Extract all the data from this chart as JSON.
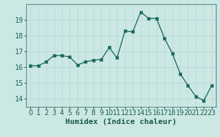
{
  "x": [
    0,
    1,
    2,
    3,
    4,
    5,
    6,
    7,
    8,
    9,
    10,
    11,
    12,
    13,
    14,
    15,
    16,
    17,
    18,
    19,
    20,
    21,
    22,
    23
  ],
  "y": [
    16.1,
    16.1,
    16.35,
    16.75,
    16.75,
    16.65,
    16.15,
    16.35,
    16.45,
    16.5,
    17.25,
    16.6,
    18.3,
    18.25,
    19.5,
    19.1,
    19.1,
    17.85,
    16.9,
    15.6,
    14.85,
    14.15,
    13.9,
    14.85
  ],
  "line_color": "#1a6b5a",
  "marker_color": "#1a6b5a",
  "bg_color": "#cce8e5",
  "grid_color": "#b8d8d5",
  "xlabel": "Humidex (Indice chaleur)",
  "xlim": [
    -0.5,
    23.5
  ],
  "ylim": [
    13.5,
    20.0
  ],
  "yticks": [
    14,
    15,
    16,
    17,
    18,
    19
  ],
  "xticks": [
    0,
    1,
    2,
    3,
    4,
    5,
    6,
    7,
    8,
    9,
    10,
    11,
    12,
    13,
    14,
    15,
    16,
    17,
    18,
    19,
    20,
    21,
    22,
    23
  ],
  "xlabel_fontsize": 8,
  "tick_fontsize": 7,
  "label_color": "#1a5a4a",
  "spine_color": "#5a8a80"
}
